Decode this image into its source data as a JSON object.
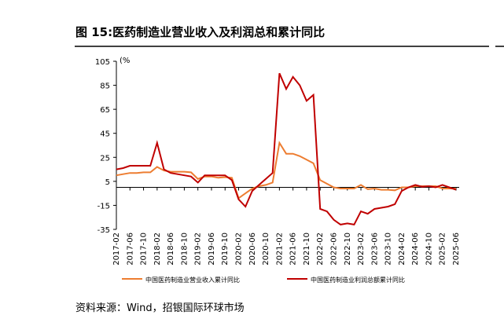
{
  "chart_data": {
    "type": "line",
    "title": "图 15:医药制造业营业收入及利润总和累计同比",
    "y_unit": "(%",
    "source": "资料来源：Wind，招银国际环球市场",
    "categories": [
      "2017-02",
      null,
      "2017-06",
      null,
      "2017-10",
      null,
      "2018-02",
      null,
      "2018-06",
      null,
      "2018-10",
      null,
      "2019-02",
      null,
      "2019-06",
      null,
      "2019-10",
      null,
      "2020-02",
      null,
      "2020-06",
      null,
      "2020-10",
      null,
      "2021-02",
      null,
      "2021-06",
      null,
      "2021-10",
      null,
      "2022-02",
      null,
      "2022-06",
      null,
      "2022-10",
      null,
      "2023-02",
      null,
      "2023-06",
      null,
      "2023-10",
      null,
      "2024-02",
      null,
      "2024-06",
      null,
      "2024-10",
      null,
      "2025-02",
      null,
      "2025-06"
    ],
    "series": [
      {
        "name": "中国医药制造业营业收入累计同比",
        "color": "#ed7d31",
        "values": [
          10,
          11,
          12,
          12,
          12.5,
          12.5,
          17,
          14,
          13,
          13,
          13,
          12.5,
          7,
          9,
          9,
          8,
          8.5,
          8,
          -9,
          -5,
          -1,
          1,
          2,
          4,
          37,
          28,
          28,
          26,
          23,
          20,
          6,
          3,
          0,
          -1,
          -1,
          -1,
          2,
          -1.5,
          -1,
          -2,
          -2,
          -2.5,
          0,
          0,
          1,
          1,
          1,
          1,
          -1,
          -1,
          -1
        ]
      },
      {
        "name": "中国医药制造业利润总额累计同比",
        "color": "#c00000",
        "values": [
          15,
          16,
          18,
          18,
          18,
          18,
          37,
          15,
          12,
          11,
          10,
          9,
          4,
          10,
          10,
          10,
          10,
          6,
          -10,
          -16,
          -3,
          2,
          7,
          12,
          95,
          82,
          92,
          85,
          72,
          77,
          -18,
          -20,
          -27,
          -31,
          -30,
          -31,
          -20,
          -22,
          -18,
          -17,
          -16,
          -14,
          -3,
          0,
          2,
          0.5,
          1,
          0,
          2,
          0,
          -2
        ]
      }
    ],
    "ylim": [
      -35,
      105
    ],
    "yticks": [
      105,
      85,
      65,
      45,
      25,
      5,
      -15,
      -35
    ],
    "grid": false
  }
}
